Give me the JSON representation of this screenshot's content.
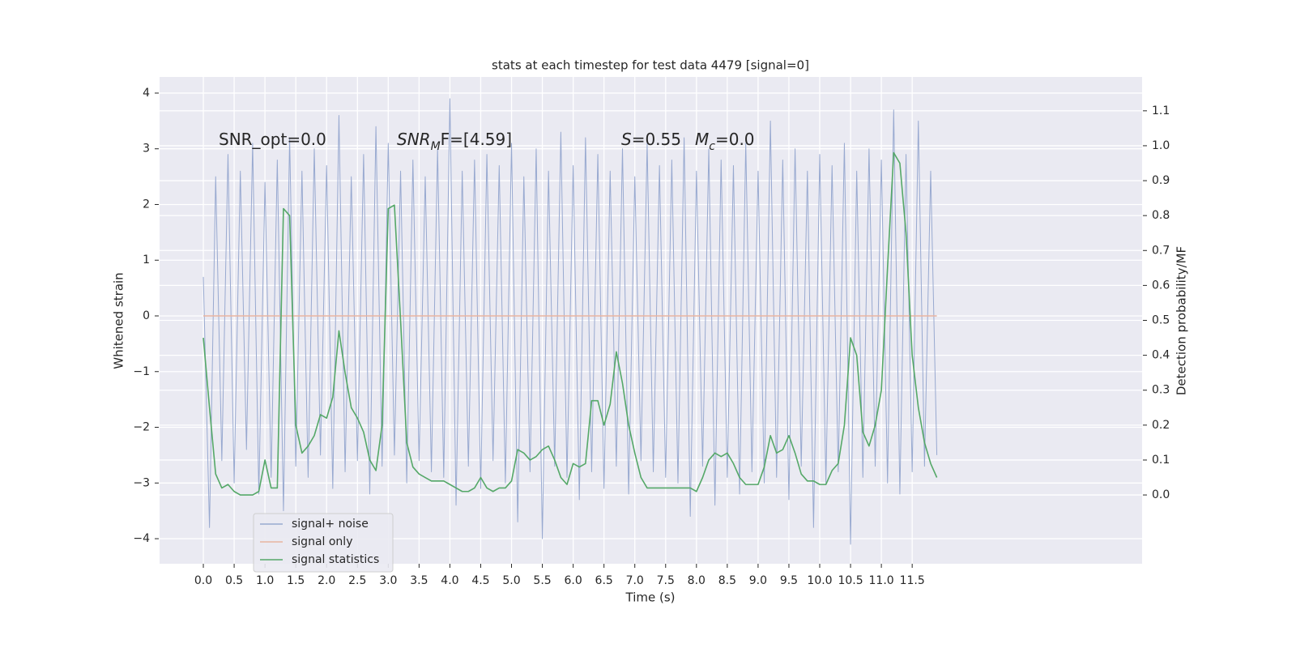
{
  "chart_data": {
    "type": "line",
    "title": "stats at each timestep for test data 4479 [signal=0]",
    "xlabel": "Time (s)",
    "ylabel": "Whitened strain",
    "y2label": "Detection probability/MF",
    "grid": true,
    "legend": "lower left",
    "annotations": [
      [
        {
          "text": "SNR_opt=0.0"
        }
      ],
      [
        {
          "text": "SNR",
          "style": "italic"
        },
        {
          "text": "M",
          "style": "sub"
        },
        {
          "text": "F=[4.59]"
        }
      ],
      [
        {
          "text": "S",
          "style": "italic"
        },
        {
          "text": "=0.55"
        }
      ],
      [
        {
          "text": "M",
          "style": "italic"
        },
        {
          "text": "c",
          "style": "sub"
        },
        {
          "text": "=0.0"
        }
      ]
    ],
    "xlim": [
      -0.71,
      15.23
    ],
    "ylim": [
      -4.45,
      4.29
    ],
    "y2lim": [
      -0.197,
      1.197
    ],
    "xticks": [
      {
        "value": 0,
        "label": "0.0"
      },
      {
        "value": 0.5,
        "label": "0.5"
      },
      {
        "value": 1,
        "label": "1.0"
      },
      {
        "value": 1.5,
        "label": "1.5"
      },
      {
        "value": 2,
        "label": "2.0"
      },
      {
        "value": 2.5,
        "label": "2.5"
      },
      {
        "value": 3,
        "label": "3.0"
      },
      {
        "value": 3.5,
        "label": "3.5"
      },
      {
        "value": 4,
        "label": "4.0"
      },
      {
        "value": 4.5,
        "label": "4.5"
      },
      {
        "value": 5,
        "label": "5.0"
      },
      {
        "value": 5.5,
        "label": "5.5"
      },
      {
        "value": 6,
        "label": "6.0"
      },
      {
        "value": 6.5,
        "label": "6.5"
      },
      {
        "value": 7,
        "label": "7.0"
      },
      {
        "value": 7.5,
        "label": "7.5"
      },
      {
        "value": 8,
        "label": "8.0"
      },
      {
        "value": 8.5,
        "label": "8.5"
      },
      {
        "value": 9,
        "label": "9.0"
      },
      {
        "value": 9.5,
        "label": "9.5"
      },
      {
        "value": 10,
        "label": "10.0"
      },
      {
        "value": 10.5,
        "label": "10.5"
      },
      {
        "value": 11,
        "label": "11.0"
      },
      {
        "value": 11.5,
        "label": "11.5"
      }
    ],
    "yticks": [
      {
        "value": -4,
        "label": "−4"
      },
      {
        "value": -3,
        "label": "−3"
      },
      {
        "value": -2,
        "label": "−2"
      },
      {
        "value": -1,
        "label": "−1"
      },
      0,
      1,
      2,
      3,
      4
    ],
    "y2ticks": [
      {
        "value": 0,
        "label": "0.0"
      },
      0.1,
      0.2,
      0.3,
      0.4,
      0.5,
      0.6,
      0.7,
      0.8,
      0.9,
      {
        "value": 1,
        "label": "1.0"
      },
      1.1
    ],
    "x": [
      0,
      0.1,
      0.2,
      0.3,
      0.4,
      0.5,
      0.6,
      0.7,
      0.8,
      0.9,
      1,
      1.1,
      1.2,
      1.3,
      1.4,
      1.5,
      1.6,
      1.7,
      1.8,
      1.9,
      2,
      2.1,
      2.2,
      2.3,
      2.4,
      2.5,
      2.6,
      2.7,
      2.8,
      2.9,
      3,
      3.1,
      3.2,
      3.3,
      3.4,
      3.5,
      3.6,
      3.7,
      3.8,
      3.9,
      4,
      4.1,
      4.2,
      4.3,
      4.4,
      4.5,
      4.6,
      4.7,
      4.8,
      4.9,
      5,
      5.1,
      5.2,
      5.3,
      5.4,
      5.5,
      5.6,
      5.7,
      5.8,
      5.9,
      6,
      6.1,
      6.2,
      6.3,
      6.4,
      6.5,
      6.6,
      6.7,
      6.8,
      6.9,
      7,
      7.1,
      7.2,
      7.3,
      7.4,
      7.5,
      7.6,
      7.7,
      7.8,
      7.9,
      8,
      8.1,
      8.2,
      8.3,
      8.4,
      8.5,
      8.6,
      8.7,
      8.8,
      8.9,
      9,
      9.1,
      9.2,
      9.3,
      9.4,
      9.5,
      9.6,
      9.7,
      9.8,
      9.9,
      10,
      10.1,
      10.2,
      10.3,
      10.4,
      10.5,
      10.6,
      10.7,
      10.8,
      10.9,
      11,
      11.1,
      11.2,
      11.3,
      11.4,
      11.5,
      11.6,
      11.7,
      11.8,
      11.9
    ],
    "series": [
      {
        "name": "signal+ noise",
        "color": "#98a9d0",
        "values": [
          0.7,
          -3.8,
          2.5,
          -2.6,
          2.9,
          -3.0,
          2.6,
          -2.4,
          3.1,
          -3.2,
          2.4,
          -2.9,
          2.8,
          -3.5,
          3.2,
          -2.7,
          2.6,
          -2.9,
          3.0,
          -2.5,
          2.7,
          -3.1,
          3.6,
          -2.8,
          2.5,
          -2.6,
          2.9,
          -3.2,
          3.4,
          -2.7,
          3.1,
          -2.5,
          2.6,
          -3.0,
          2.8,
          -2.6,
          2.5,
          -2.8,
          3.0,
          -2.9,
          3.9,
          -3.4,
          2.6,
          -2.7,
          2.8,
          -3.1,
          2.9,
          -2.6,
          2.7,
          -3.0,
          3.1,
          -3.7,
          2.5,
          -2.8,
          3.0,
          -4.0,
          2.6,
          -2.7,
          3.3,
          -2.9,
          2.7,
          -3.3,
          3.2,
          -2.8,
          2.9,
          -3.1,
          2.6,
          -2.7,
          3.0,
          -3.2,
          2.5,
          -2.6,
          3.1,
          -2.8,
          2.7,
          -2.9,
          2.8,
          -3.0,
          3.2,
          -3.6,
          2.6,
          -2.7,
          3.0,
          -3.4,
          2.8,
          -2.9,
          2.7,
          -3.2,
          3.1,
          -2.8,
          2.6,
          -3.0,
          3.5,
          -2.9,
          2.8,
          -3.3,
          3.0,
          -2.7,
          2.6,
          -3.8,
          2.9,
          -3.0,
          2.7,
          -2.8,
          3.1,
          -4.1,
          2.6,
          -2.9,
          3.0,
          -2.7,
          2.8,
          -3.0,
          3.7,
          -3.2,
          2.9,
          -2.8,
          3.5,
          -2.7,
          2.6,
          -2.5
        ]
      },
      {
        "name": "signal only",
        "color": "#e8b4a0",
        "values": [
          0,
          0,
          0,
          0,
          0,
          0,
          0,
          0,
          0,
          0,
          0,
          0,
          0,
          0,
          0,
          0,
          0,
          0,
          0,
          0,
          0,
          0,
          0,
          0,
          0,
          0,
          0,
          0,
          0,
          0,
          0,
          0,
          0,
          0,
          0,
          0,
          0,
          0,
          0,
          0,
          0,
          0,
          0,
          0,
          0,
          0,
          0,
          0,
          0,
          0,
          0,
          0,
          0,
          0,
          0,
          0,
          0,
          0,
          0,
          0,
          0,
          0,
          0,
          0,
          0,
          0,
          0,
          0,
          0,
          0,
          0,
          0,
          0,
          0,
          0,
          0,
          0,
          0,
          0,
          0,
          0,
          0,
          0,
          0,
          0,
          0,
          0,
          0,
          0,
          0,
          0,
          0,
          0,
          0,
          0,
          0,
          0,
          0,
          0,
          0,
          0,
          0,
          0,
          0,
          0,
          0,
          0,
          0,
          0,
          0,
          0,
          0,
          0,
          0,
          0,
          0,
          0,
          0,
          0,
          0
        ]
      },
      {
        "name": "signal statistics",
        "color": "#55a868",
        "axis": "y2",
        "values": [
          0.45,
          0.25,
          0.06,
          0.02,
          0.03,
          0.01,
          0,
          0,
          0,
          0.01,
          0.1,
          0.02,
          0.02,
          0.82,
          0.8,
          0.2,
          0.12,
          0.14,
          0.17,
          0.23,
          0.22,
          0.28,
          0.47,
          0.35,
          0.25,
          0.22,
          0.18,
          0.1,
          0.07,
          0.2,
          0.82,
          0.83,
          0.5,
          0.15,
          0.08,
          0.06,
          0.05,
          0.04,
          0.04,
          0.04,
          0.03,
          0.02,
          0.01,
          0.01,
          0.02,
          0.05,
          0.02,
          0.01,
          0.02,
          0.02,
          0.04,
          0.13,
          0.12,
          0.1,
          0.11,
          0.13,
          0.14,
          0.1,
          0.05,
          0.03,
          0.09,
          0.08,
          0.09,
          0.27,
          0.27,
          0.2,
          0.26,
          0.41,
          0.32,
          0.2,
          0.12,
          0.05,
          0.02,
          0.02,
          0.02,
          0.02,
          0.02,
          0.02,
          0.02,
          0.02,
          0.01,
          0.05,
          0.1,
          0.12,
          0.11,
          0.12,
          0.09,
          0.05,
          0.03,
          0.03,
          0.03,
          0.08,
          0.17,
          0.12,
          0.13,
          0.17,
          0.12,
          0.06,
          0.04,
          0.04,
          0.03,
          0.03,
          0.07,
          0.09,
          0.2,
          0.45,
          0.4,
          0.18,
          0.14,
          0.2,
          0.3,
          0.65,
          0.98,
          0.95,
          0.75,
          0.4,
          0.25,
          0.15,
          0.09,
          0.05
        ]
      }
    ]
  }
}
